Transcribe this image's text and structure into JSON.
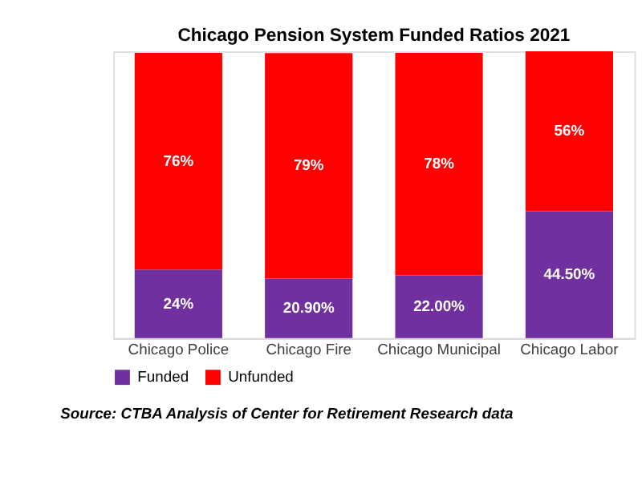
{
  "chart_data": {
    "type": "bar",
    "title": "Chicago Pension System Funded Ratios 2021",
    "categories": [
      "Chicago Police",
      "Chicago Fire",
      "Chicago Municipal",
      "Chicago Labor"
    ],
    "stacked": true,
    "series": [
      {
        "name": "Funded",
        "color": "#7030a0",
        "values": [
          24,
          20.9,
          22,
          44.5
        ],
        "value_labels": [
          "24%",
          "20.90%",
          "22.00%",
          "44.50%"
        ]
      },
      {
        "name": "Unfunded",
        "color": "#ff0000",
        "values": [
          76,
          79,
          78,
          56
        ],
        "value_labels": [
          "76%",
          "79%",
          "78%",
          "56%"
        ]
      }
    ],
    "tick_labels": "x",
    "legend": "bottom",
    "annotations": [
      "Source: CTBA Analysis of Center for Retirement Research data"
    ]
  }
}
